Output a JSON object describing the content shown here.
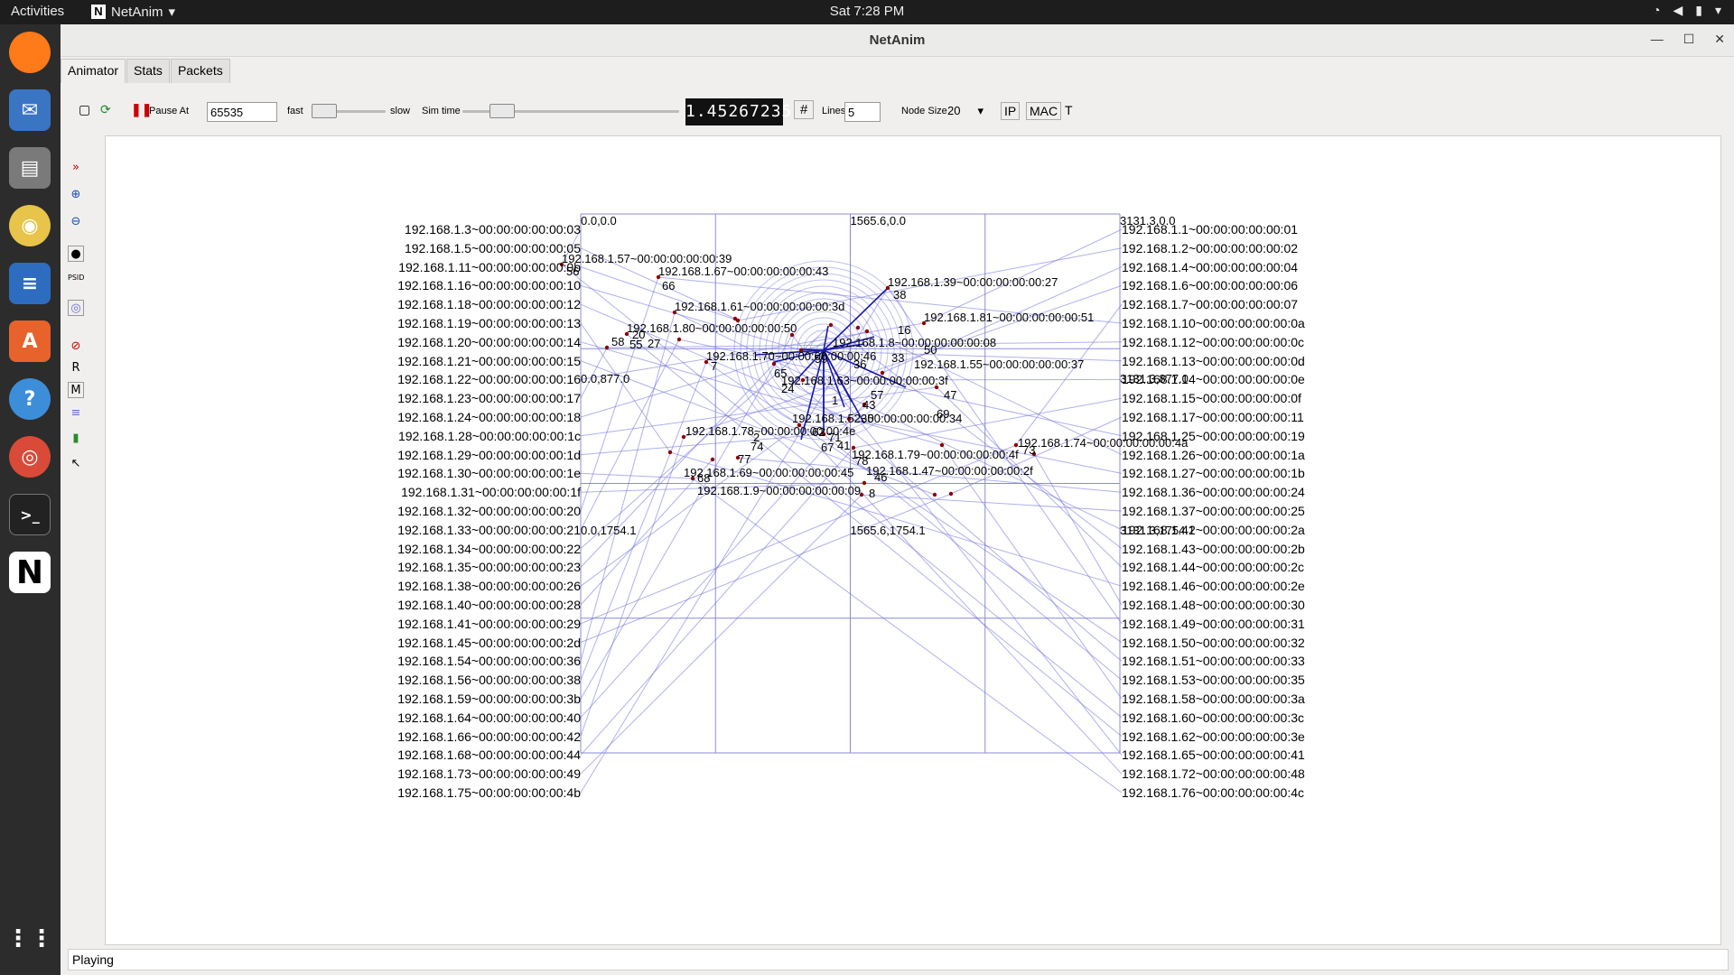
{
  "topbar": {
    "activities": "Activities",
    "app_name": "NetAnim",
    "clock": "Sat  7:28 PM"
  },
  "window": {
    "title": "NetAnim"
  },
  "tabs": [
    {
      "label": "Animator"
    },
    {
      "label": "Stats"
    },
    {
      "label": "Packets"
    }
  ],
  "toolbar": {
    "pause_at_label": "Pause At",
    "pause_at_value": "65535",
    "fast_label": "fast",
    "slow_label": "slow",
    "sim_time_label": "Sim time",
    "sim_time_value": "1.45267235",
    "lines_label": "Lines",
    "lines_value": "5",
    "node_size_label": "Node Size",
    "node_size_value": "20",
    "ip_label": "IP",
    "mac_label": "MAC",
    "t_label": "T",
    "grid_symbol": "#"
  },
  "left_tools": {
    "r": "R",
    "m": "M"
  },
  "grid_labels": [
    "0.0,0.0",
    "1565.6,0.0",
    "3131.3,0.0",
    "0.0,877.0",
    "3131.3,877.0",
    "0.0,1754.1",
    "1565.6,1754.1",
    "3131.3,1754.1"
  ],
  "left_labels": [
    "192.168.1.3~00:00:00:00:00:03",
    "192.168.1.5~00:00:00:00:00:05",
    "192.168.1.11~00:00:00:00:00:0b",
    "192.168.1.16~00:00:00:00:00:10",
    "192.168.1.18~00:00:00:00:00:12",
    "192.168.1.19~00:00:00:00:00:13",
    "192.168.1.20~00:00:00:00:00:14",
    "192.168.1.21~00:00:00:00:00:15",
    "192.168.1.22~00:00:00:00:00:16",
    "192.168.1.23~00:00:00:00:00:17",
    "192.168.1.24~00:00:00:00:00:18",
    "192.168.1.28~00:00:00:00:00:1c",
    "192.168.1.29~00:00:00:00:00:1d",
    "192.168.1.30~00:00:00:00:00:1e",
    "192.168.1.31~00:00:00:00:00:1f",
    "192.168.1.32~00:00:00:00:00:20",
    "192.168.1.33~00:00:00:00:00:21",
    "192.168.1.34~00:00:00:00:00:22",
    "192.168.1.35~00:00:00:00:00:23",
    "192.168.1.38~00:00:00:00:00:26",
    "192.168.1.40~00:00:00:00:00:28",
    "192.168.1.41~00:00:00:00:00:29",
    "192.168.1.45~00:00:00:00:00:2d",
    "192.168.1.54~00:00:00:00:00:36",
    "192.168.1.56~00:00:00:00:00:38",
    "192.168.1.59~00:00:00:00:00:3b",
    "192.168.1.64~00:00:00:00:00:40",
    "192.168.1.66~00:00:00:00:00:42",
    "192.168.1.68~00:00:00:00:00:44",
    "192.168.1.73~00:00:00:00:00:49",
    "192.168.1.75~00:00:00:00:00:4b"
  ],
  "right_labels": [
    "192.168.1.1~00:00:00:00:00:01",
    "192.168.1.2~00:00:00:00:00:02",
    "192.168.1.4~00:00:00:00:00:04",
    "192.168.1.6~00:00:00:00:00:06",
    "192.168.1.7~00:00:00:00:00:07",
    "192.168.1.10~00:00:00:00:00:0a",
    "192.168.1.12~00:00:00:00:00:0c",
    "192.168.1.13~00:00:00:00:00:0d",
    "192.168.1.14~00:00:00:00:00:0e",
    "192.168.1.15~00:00:00:00:00:0f",
    "192.168.1.17~00:00:00:00:00:11",
    "192.168.1.25~00:00:00:00:00:19",
    "192.168.1.26~00:00:00:00:00:1a",
    "192.168.1.27~00:00:00:00:00:1b",
    "192.168.1.36~00:00:00:00:00:24",
    "192.168.1.37~00:00:00:00:00:25",
    "192.168.1.42~00:00:00:00:00:2a",
    "192.168.1.43~00:00:00:00:00:2b",
    "192.168.1.44~00:00:00:00:00:2c",
    "192.168.1.46~00:00:00:00:00:2e",
    "192.168.1.48~00:00:00:00:00:30",
    "192.168.1.49~00:00:00:00:00:31",
    "192.168.1.50~00:00:00:00:00:32",
    "192.168.1.51~00:00:00:00:00:33",
    "192.168.1.53~00:00:00:00:00:35",
    "192.168.1.58~00:00:00:00:00:3a",
    "192.168.1.60~00:00:00:00:00:3c",
    "192.168.1.62~00:00:00:00:00:3e",
    "192.168.1.65~00:00:00:00:00:41",
    "192.168.1.72~00:00:00:00:00:48",
    "192.168.1.76~00:00:00:00:00:4c"
  ],
  "canvas_labels": [
    "192.168.1.57~00:00:00:00:00:39",
    "192.168.1.67~00:00:00:00:00:43",
    "192.168.1.39~00:00:00:00:00:27",
    "192.168.1.61~00:00:00:00:00:3d",
    "192.168.1.81~00:00:00:00:00:51",
    "192.168.1.80~00:00:00:00:00:50",
    "192.168.1.8~00:00:00:00:00:08",
    "192.168.1.70~00:00:00:00:00:46",
    "192.168.1.55~00:00:00:00:00:37",
    "192.168.1.63~00:00:00:00:00:3f",
    "192.168.1.52~00:00:00:00:00:34",
    "192.168.1.78~00:00:00:00:00:4e",
    "192.168.1.79~00:00:00:00:00:4f",
    "192.168.1.74~00:00:00:00:00:4a",
    "192.168.1.47~00:00:00:00:00:2f",
    "192.168.1.69~00:00:00:00:00:45",
    "192.168.1.9~00:00:00:00:00:09"
  ],
  "node_ids": [
    "56",
    "66",
    "38",
    "16",
    "50",
    "47",
    "58",
    "55",
    "27",
    "7",
    "59",
    "24",
    "57",
    "43",
    "1",
    "41",
    "67",
    "62",
    "71",
    "74",
    "77",
    "68",
    "2",
    "78",
    "46",
    "8",
    "65",
    "69",
    "35",
    "33",
    "36",
    "20",
    "73"
  ],
  "status": {
    "text": "Playing"
  },
  "colors": {
    "grid": "#8b8bd6",
    "link": "#7070e0",
    "arrow": "#1a1aa8",
    "node": "#8b0000",
    "lcd_bg": "#111111"
  }
}
